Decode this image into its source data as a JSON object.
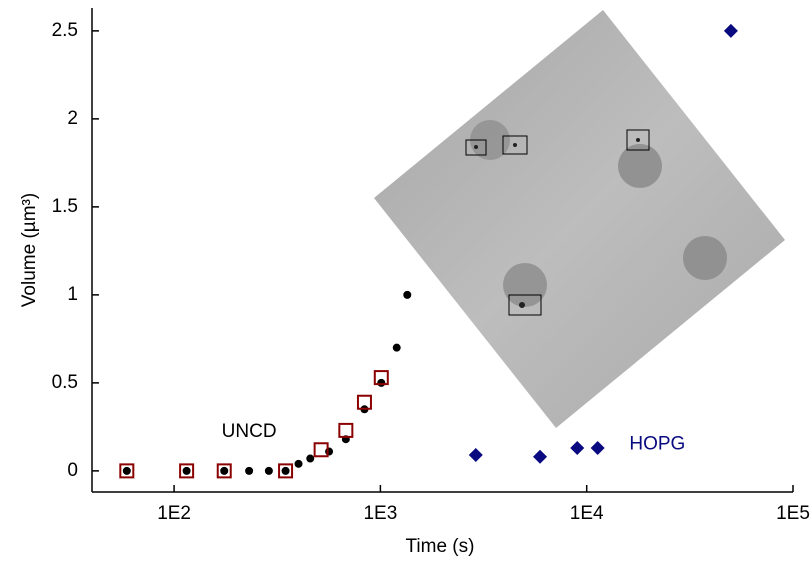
{
  "chart_data": {
    "type": "scatter",
    "x_label": "Time (s)",
    "y_label": "Volume (µm³)",
    "xscale": "log",
    "xlim": [
      40,
      100000
    ],
    "ylim": [
      -0.12,
      2.63
    ],
    "xticks": [
      {
        "value": 100,
        "label": "1E2"
      },
      {
        "value": 1000,
        "label": "1E3"
      },
      {
        "value": 10000,
        "label": "1E4"
      },
      {
        "value": 100000,
        "label": "1E5"
      }
    ],
    "yticks": [
      0,
      0.5,
      1,
      1.5,
      2,
      2.5
    ],
    "series": [
      {
        "marker": "circle",
        "color": "#000000",
        "x": [
          59,
          115,
          175,
          231,
          288,
          347,
          401,
          457,
          564,
          680,
          837,
          1010,
          1200,
          1350
        ],
        "values": [
          0,
          0,
          0,
          0,
          0,
          0,
          0.04,
          0.07,
          0.11,
          0.18,
          0.35,
          0.5,
          0.7,
          1.0
        ]
      },
      {
        "marker": "open-square",
        "color": "#8b0000",
        "x": [
          59,
          115,
          175,
          347,
          516,
          680,
          837,
          1010
        ],
        "values": [
          0,
          0,
          0,
          0,
          0.12,
          0.23,
          0.39,
          0.53
        ]
      },
      {
        "marker": "diamond",
        "color": "#0a0a80",
        "x": [
          2900,
          5940,
          9000,
          11300,
          50000
        ],
        "values": [
          0.09,
          0.08,
          0.13,
          0.13,
          2.5
        ]
      }
    ],
    "annotations": [
      {
        "text": "UNCD",
        "x": 231,
        "y": 0.22,
        "color": "#000000"
      },
      {
        "text": "HOPG",
        "x": 22000,
        "y": 0.15,
        "color": "#0a0a80"
      }
    ]
  }
}
